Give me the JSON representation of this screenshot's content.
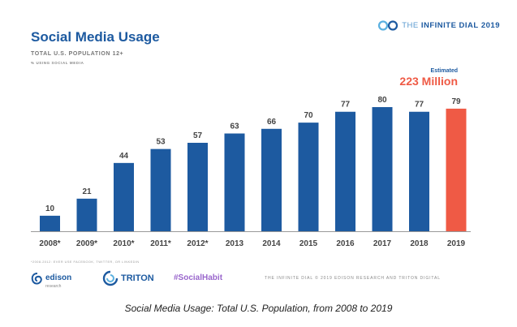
{
  "header": {
    "title": "Social Media Usage",
    "subtitle": "TOTAL U.S. POPULATION 12+",
    "note": "% USING SOCIAL MEDIA"
  },
  "brand": {
    "prefix": "THE",
    "name": "INFINITE DIAL",
    "year": "2019"
  },
  "callout": {
    "label": "Estimated",
    "value": "223 Million"
  },
  "chart_data": {
    "type": "bar",
    "title": "Social Media Usage",
    "subtitle": "TOTAL U.S. POPULATION 12+",
    "ylabel": "% USING SOCIAL MEDIA",
    "categories": [
      "2008*",
      "2009*",
      "2010*",
      "2011*",
      "2012*",
      "2013",
      "2014",
      "2015",
      "2016",
      "2017",
      "2018",
      "2019"
    ],
    "values": [
      10,
      21,
      44,
      53,
      57,
      63,
      66,
      70,
      77,
      80,
      77,
      79
    ],
    "ylim": [
      0,
      80
    ],
    "grid": false,
    "colors": {
      "default": "#1d5aa0",
      "highlight": "#ef5a45"
    },
    "highlight_index": 11
  },
  "footer": {
    "footnote": "*2008-2012: EVER USE FACEBOOK, TWITTER, OR LINKEDIN",
    "edison_name": "edison",
    "edison_sub": "research",
    "triton_name": "TRITON",
    "hashtag": "#SocialHabit",
    "copyright": "THE INFINITE DIAL  © 2019 EDISON RESEARCH AND TRITON DIGITAL"
  },
  "caption": "Social Media Usage: Total U.S. Population, from 2008 to 2019"
}
